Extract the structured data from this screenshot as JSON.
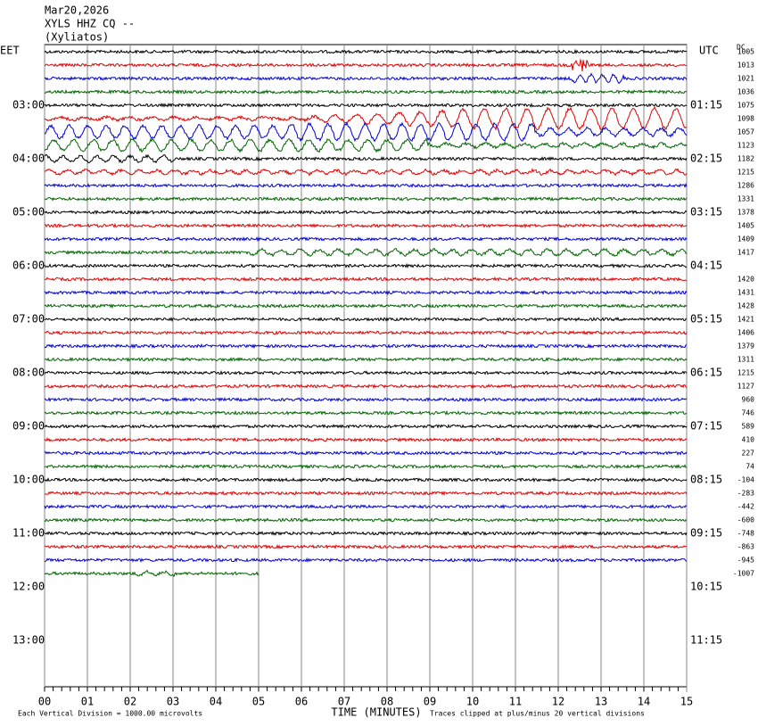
{
  "header": {
    "date": "Mar20,2026",
    "station": "XYLS HHZ CQ --",
    "site": "(Xyliatos)"
  },
  "left_zone": "EET",
  "right_zone": "UTC",
  "dc_header": "DC",
  "left_times": [
    "03:00",
    "04:00",
    "05:00",
    "06:00",
    "07:00",
    "08:00",
    "09:00",
    "10:00",
    "11:00",
    "12:00",
    "13:00"
  ],
  "right_times": [
    "01:15",
    "02:15",
    "03:15",
    "04:15",
    "05:15",
    "06:15",
    "07:15",
    "08:15",
    "09:15",
    "10:15",
    "11:15"
  ],
  "dc_offsets": [
    "1005",
    "1013",
    "1021",
    "1036",
    "1075",
    "1098",
    "1057",
    "1123",
    "1182",
    "1215",
    "1286",
    "1331",
    "1378",
    "1405",
    "1409",
    "1417",
    null,
    "1420",
    "1431",
    "1428",
    "1421",
    "1406",
    "1379",
    "1311",
    "1215",
    "1127",
    "960",
    "746",
    "589",
    "410",
    "227",
    "74",
    "-104",
    "-283",
    "-442",
    "-600",
    "-748",
    "-863",
    "-945",
    "-1007"
  ],
  "trace_colors": [
    "#000000",
    "#e00000",
    "#0000d0",
    "#006400"
  ],
  "x_axis": {
    "label": "TIME (MINUTES)",
    "lim": [
      0,
      15
    ],
    "ticks": [
      {
        "value": 0,
        "label": "00"
      },
      {
        "value": 1,
        "label": "01"
      },
      {
        "value": 2,
        "label": "02"
      },
      {
        "value": 3,
        "label": "03"
      },
      {
        "value": 4,
        "label": "04"
      },
      {
        "value": 5,
        "label": "05"
      },
      {
        "value": 6,
        "label": "06"
      },
      {
        "value": 7,
        "label": "07"
      },
      {
        "value": 8,
        "label": "08"
      },
      {
        "value": 9,
        "label": "09"
      },
      {
        "value": 10,
        "label": "10"
      },
      {
        "value": 11,
        "label": "11"
      },
      {
        "value": 12,
        "label": "12"
      },
      {
        "value": 13,
        "label": "13"
      },
      {
        "value": 14,
        "label": "14"
      },
      {
        "value": 15,
        "label": "15"
      }
    ]
  },
  "footer": {
    "scale": "Each Vertical Division = 1000.00 microvolts",
    "clip": "Traces clipped at plus/minus 20 vertical divisions"
  }
}
